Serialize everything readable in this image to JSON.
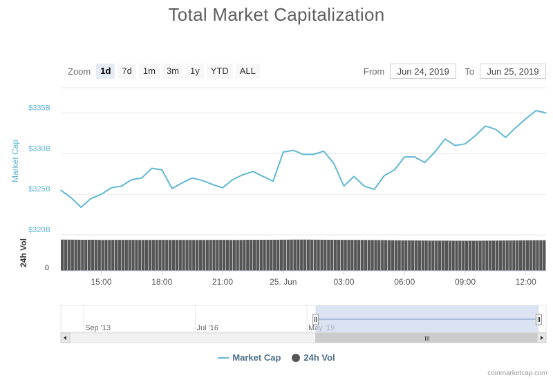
{
  "title": "Total Market Capitalization",
  "zoom": {
    "label": "Zoom",
    "buttons": [
      "1d",
      "7d",
      "1m",
      "3m",
      "1y",
      "YTD",
      "ALL"
    ],
    "active": "1d"
  },
  "range": {
    "from_label": "From",
    "from_value": "Jun 24, 2019",
    "to_label": "To",
    "to_value": "Jun 25, 2019"
  },
  "credit": "coinmarketcap.com",
  "colors": {
    "market_cap": "#5fb8d4",
    "volume": "#555555",
    "navigator_fill": "#ccd6eb"
  },
  "chart_data": {
    "type": "line",
    "x": [
      "13:00",
      "13:30",
      "14:00",
      "14:30",
      "15:00",
      "15:30",
      "16:00",
      "16:30",
      "17:00",
      "17:30",
      "18:00",
      "18:30",
      "19:00",
      "19:30",
      "20:00",
      "20:30",
      "21:00",
      "21:30",
      "22:00",
      "22:30",
      "23:00",
      "23:30",
      "00:00",
      "00:30",
      "01:00",
      "01:30",
      "02:00",
      "02:30",
      "03:00",
      "03:30",
      "04:00",
      "04:30",
      "05:00",
      "05:30",
      "06:00",
      "06:30",
      "07:00",
      "07:30",
      "08:00",
      "08:30",
      "09:00",
      "09:30",
      "10:00",
      "10:30",
      "11:00",
      "11:30",
      "12:00",
      "12:30",
      "12:50"
    ],
    "series": [
      {
        "name": "Market Cap",
        "unit": "B",
        "values": [
          325.5,
          324.6,
          323.4,
          324.5,
          325.0,
          325.8,
          326.0,
          326.8,
          327.0,
          328.2,
          328.0,
          325.7,
          326.4,
          327.0,
          326.7,
          326.2,
          325.8,
          326.8,
          327.4,
          327.8,
          327.2,
          326.6,
          330.2,
          330.4,
          329.9,
          329.9,
          330.3,
          328.8,
          326.0,
          327.2,
          326.0,
          325.6,
          327.3,
          328.0,
          329.6,
          329.6,
          328.9,
          330.2,
          331.8,
          331.0,
          331.2,
          332.2,
          333.4,
          333.0,
          332.0,
          333.2,
          334.3,
          335.3,
          335.0
        ]
      },
      {
        "name": "24h Vol",
        "values": [
          36.2,
          36.1,
          36.0,
          36.0,
          35.8,
          35.9,
          35.9,
          35.9,
          35.8,
          35.9,
          35.9,
          35.8,
          35.9,
          35.8,
          35.8,
          35.9,
          35.9,
          35.8,
          35.9,
          36.0,
          36.0,
          36.0,
          36.1,
          36.2,
          36.2,
          36.1,
          36.0,
          36.0,
          35.9,
          35.9,
          35.8,
          35.7,
          35.6,
          35.4,
          35.3,
          35.2,
          35.1,
          35.0,
          35.0,
          34.9,
          34.9,
          34.9,
          35.0,
          35.1,
          35.2,
          35.3,
          35.4,
          35.5,
          35.5
        ]
      }
    ],
    "y_axis": {
      "label": "Market Cap",
      "ticks": [
        "$335B",
        "$330B",
        "$325B",
        "$320B"
      ],
      "tick_values": [
        335,
        330,
        325,
        320
      ],
      "range": [
        320,
        337
      ]
    },
    "volume_axis": {
      "label": "24h Vol",
      "ticks": [
        "0"
      ],
      "range": [
        0,
        40
      ]
    },
    "x_ticks": [
      "15:00",
      "18:00",
      "21:00",
      "25. Jun",
      "03:00",
      "06:00",
      "09:00",
      "12:00"
    ],
    "x_tick_indices": [
      4,
      10,
      16,
      22,
      28,
      34,
      40,
      46
    ],
    "navigator": {
      "labels": [
        "Sep '13",
        "Jul '16",
        "May '19"
      ],
      "label_positions": [
        0.05,
        0.28,
        0.51
      ],
      "selection": [
        0.525,
        0.985
      ],
      "scroll_label": "III"
    },
    "legend": [
      "Market Cap",
      "24h Vol"
    ],
    "legend_position": "bottom-center"
  }
}
